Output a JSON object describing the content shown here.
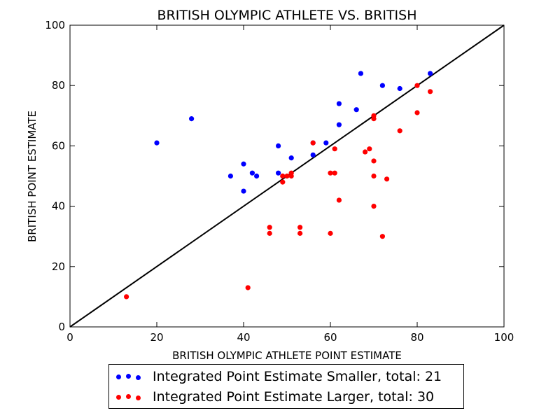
{
  "chart_data": {
    "type": "scatter",
    "title": "BRITISH OLYMPIC ATHLETE VS. BRITISH",
    "xlabel": "BRITISH OLYMPIC ATHLETE POINT ESTIMATE",
    "ylabel": "BRITISH POINT ESTIMATE",
    "xlim": [
      0,
      100
    ],
    "ylim": [
      0,
      100
    ],
    "xticks": [
      0,
      20,
      40,
      60,
      80,
      100
    ],
    "yticks": [
      0,
      20,
      40,
      60,
      80,
      100
    ],
    "grid": false,
    "legend_position": "below",
    "reference_line": {
      "x": [
        0,
        100
      ],
      "y": [
        0,
        100
      ],
      "color": "#000000"
    },
    "series": [
      {
        "name": "Integrated Point Estimate Smaller, total: 21",
        "color": "#0000ff",
        "points": [
          [
            20,
            61
          ],
          [
            28,
            69
          ],
          [
            37,
            50
          ],
          [
            40,
            54
          ],
          [
            40,
            45
          ],
          [
            42,
            51
          ],
          [
            43,
            50
          ],
          [
            48,
            60
          ],
          [
            48,
            51
          ],
          [
            49,
            50
          ],
          [
            51,
            56
          ],
          [
            56,
            61
          ],
          [
            56,
            57
          ],
          [
            59,
            61
          ],
          [
            62,
            74
          ],
          [
            62,
            67
          ],
          [
            66,
            72
          ],
          [
            67,
            84
          ],
          [
            72,
            80
          ],
          [
            76,
            79
          ],
          [
            83,
            84
          ]
        ]
      },
      {
        "name": "Integrated Point Estimate Larger, total: 30",
        "color": "#ff0000",
        "points": [
          [
            13,
            10
          ],
          [
            41,
            13
          ],
          [
            46,
            33
          ],
          [
            46,
            31
          ],
          [
            49,
            48
          ],
          [
            50,
            50
          ],
          [
            51,
            51
          ],
          [
            53,
            33
          ],
          [
            53,
            31
          ],
          [
            60,
            51
          ],
          [
            60,
            31
          ],
          [
            61,
            59
          ],
          [
            61,
            51
          ],
          [
            62,
            42
          ],
          [
            68,
            58
          ],
          [
            69,
            59
          ],
          [
            70,
            70
          ],
          [
            70,
            69
          ],
          [
            70,
            55
          ],
          [
            70,
            50
          ],
          [
            70,
            40
          ],
          [
            72,
            30
          ],
          [
            73,
            49
          ],
          [
            76,
            65
          ],
          [
            80,
            80
          ],
          [
            80,
            71
          ],
          [
            83,
            78
          ],
          [
            56,
            61
          ],
          [
            49,
            50
          ],
          [
            51,
            50
          ]
        ]
      }
    ]
  }
}
